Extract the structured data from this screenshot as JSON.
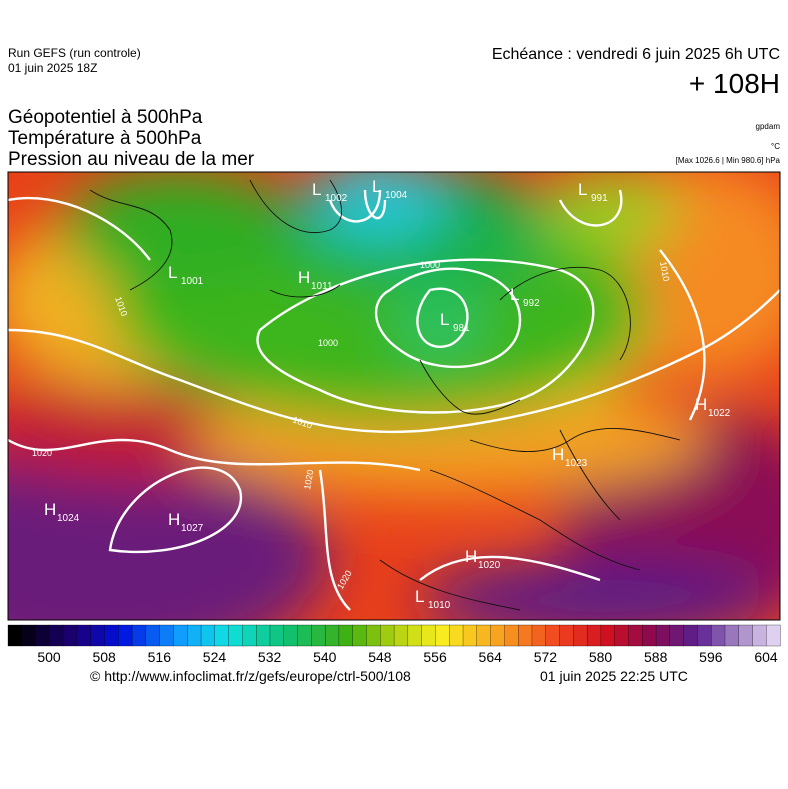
{
  "header": {
    "run": "Run GEFS (run controle)",
    "run_date": "01 juin 2025 18Z",
    "valid": "Echéance : vendredi 6 juin 2025 6h UTC",
    "lead": "+ 108H"
  },
  "titles": [
    "Géopotentiel à 500hPa",
    "Température à 500hPa",
    "Pression au niveau de la mer"
  ],
  "units": [
    "gpdam",
    "°C",
    "[Max 1026.6 | Min 980.6] hPa"
  ],
  "pressure_centers": [
    {
      "kind": "L",
      "value": 1002
    },
    {
      "kind": "L",
      "value": 1004
    },
    {
      "kind": "L",
      "value": 991
    },
    {
      "kind": "L",
      "value": 1001
    },
    {
      "kind": "H",
      "value": 1011
    },
    {
      "kind": "L",
      "value": 981
    },
    {
      "kind": "L",
      "value": 992
    },
    {
      "kind": "H",
      "value": 1022
    },
    {
      "kind": "H",
      "value": 1023
    },
    {
      "kind": "H",
      "value": 1024
    },
    {
      "kind": "H",
      "value": 1027
    },
    {
      "kind": "H",
      "value": 1020
    },
    {
      "kind": "L",
      "value": 1010
    }
  ],
  "isobar_labels": [
    1000,
    1000,
    1010,
    1010,
    1020,
    1020,
    1020,
    1010
  ],
  "colorbar_ticks": [
    500,
    508,
    516,
    524,
    532,
    540,
    548,
    556,
    564,
    572,
    580,
    588,
    596,
    604
  ],
  "footer": {
    "source": "© http://www.infoclimat.fr/z/gefs/europe/ctrl-500/108",
    "generated": "01 juin 2025 22:25 UTC"
  }
}
